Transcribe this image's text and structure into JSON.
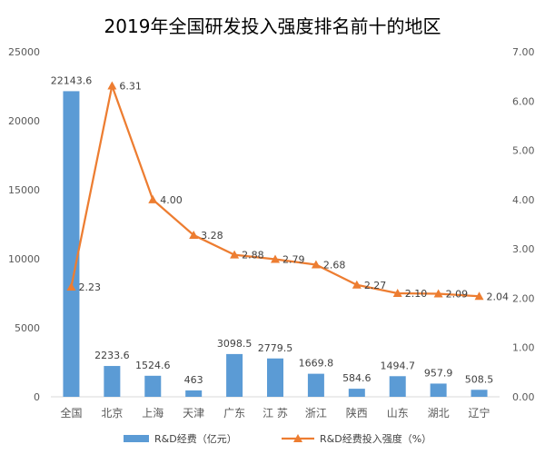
{
  "chart_data": {
    "type": "bar+line",
    "title": "2019年全国研发投入强度排名前十的地区",
    "categories": [
      "全国",
      "北京",
      "上海",
      "天津",
      "广东",
      "江 苏",
      "浙江",
      "陕西",
      "山东",
      "湖北",
      "辽宁"
    ],
    "series": [
      {
        "name": "R&D经费（亿元）",
        "type": "bar",
        "axis": "left",
        "color": "#5B9BD5",
        "values": [
          22143.6,
          2233.6,
          1524.6,
          463,
          3098.5,
          2779.5,
          1669.8,
          584.6,
          1494.7,
          957.9,
          508.5
        ],
        "labels": [
          "22143.6",
          "2233.6",
          "1524.6",
          "463",
          "3098.5",
          "2779.5",
          "1669.8",
          "584.6",
          "1494.7",
          "957.9",
          "508.5"
        ]
      },
      {
        "name": "R&D经费投入强度（%）",
        "type": "line",
        "axis": "right",
        "color": "#ED7D31",
        "marker": "triangle",
        "values": [
          2.23,
          6.31,
          4.0,
          3.28,
          2.88,
          2.79,
          2.68,
          2.27,
          2.1,
          2.09,
          2.04
        ],
        "labels": [
          "2.23",
          "6.31",
          "4.00",
          "3.28",
          "2.88",
          "2.79",
          "2.68",
          "2.27",
          "2.10",
          "2.09",
          "2.04"
        ]
      }
    ],
    "y_left": {
      "ylim": [
        0,
        25000
      ],
      "ticks": [
        "0",
        "5000",
        "10000",
        "15000",
        "20000",
        "25000"
      ]
    },
    "y_right": {
      "ylim": [
        0,
        7
      ],
      "ticks": [
        "0.00",
        "1.00",
        "2.00",
        "3.00",
        "4.00",
        "5.00",
        "6.00",
        "7.00"
      ]
    },
    "grid": false,
    "legend_position": "bottom"
  }
}
